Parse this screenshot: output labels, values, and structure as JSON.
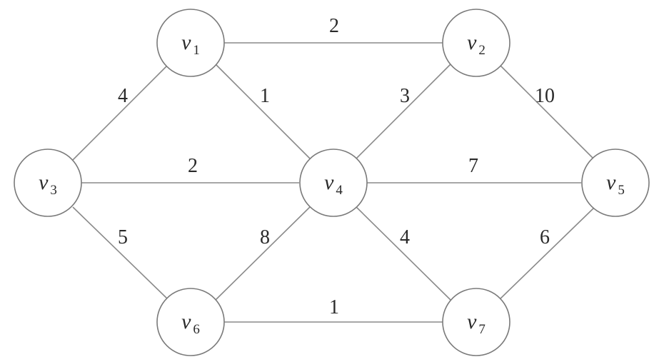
{
  "graph": {
    "nodes": [
      {
        "id": "v1",
        "name": "v",
        "sub": "1"
      },
      {
        "id": "v2",
        "name": "v",
        "sub": "2"
      },
      {
        "id": "v3",
        "name": "v",
        "sub": "3"
      },
      {
        "id": "v4",
        "name": "v",
        "sub": "4"
      },
      {
        "id": "v5",
        "name": "v",
        "sub": "5"
      },
      {
        "id": "v6",
        "name": "v",
        "sub": "6"
      },
      {
        "id": "v7",
        "name": "v",
        "sub": "7"
      }
    ],
    "edges": [
      {
        "from": "v1",
        "to": "v2",
        "weight": "2"
      },
      {
        "from": "v1",
        "to": "v3",
        "weight": "4"
      },
      {
        "from": "v1",
        "to": "v4",
        "weight": "1"
      },
      {
        "from": "v2",
        "to": "v4",
        "weight": "3"
      },
      {
        "from": "v2",
        "to": "v5",
        "weight": "10"
      },
      {
        "from": "v3",
        "to": "v4",
        "weight": "2"
      },
      {
        "from": "v4",
        "to": "v5",
        "weight": "7"
      },
      {
        "from": "v3",
        "to": "v6",
        "weight": "5"
      },
      {
        "from": "v4",
        "to": "v6",
        "weight": "8"
      },
      {
        "from": "v4",
        "to": "v7",
        "weight": "4"
      },
      {
        "from": "v5",
        "to": "v7",
        "weight": "6"
      },
      {
        "from": "v6",
        "to": "v7",
        "weight": "1"
      }
    ]
  }
}
